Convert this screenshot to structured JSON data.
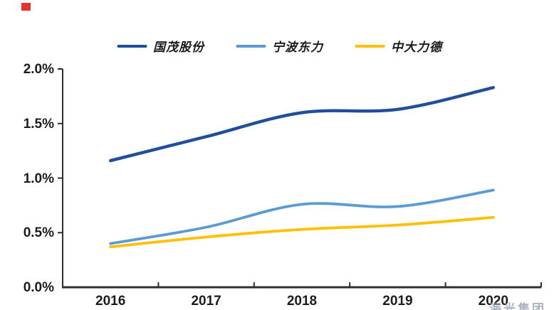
{
  "decorations": {
    "corner_mark_color": "#e5342b",
    "watermark_text": "海光集团",
    "watermark_color": "#8e9bac"
  },
  "chart_data": {
    "type": "line",
    "categories": [
      "2016",
      "2017",
      "2018",
      "2019",
      "2020"
    ],
    "series": [
      {
        "name": "国茂股份",
        "color": "#1e4e9d",
        "values": [
          1.16,
          1.38,
          1.6,
          1.63,
          1.83
        ]
      },
      {
        "name": "宁波东力",
        "color": "#5b9bd5",
        "values": [
          0.4,
          0.55,
          0.76,
          0.74,
          0.89
        ]
      },
      {
        "name": "中大力德",
        "color": "#ffc000",
        "values": [
          0.37,
          0.46,
          0.53,
          0.57,
          0.64
        ]
      }
    ],
    "y_ticks": [
      "0.0%",
      "0.5%",
      "1.0%",
      "1.5%",
      "2.0%"
    ],
    "ylim": [
      0,
      2.0
    ],
    "unit": "%",
    "grid": false,
    "legend_position": "top-center",
    "axis_color": "#2f2f2f"
  }
}
